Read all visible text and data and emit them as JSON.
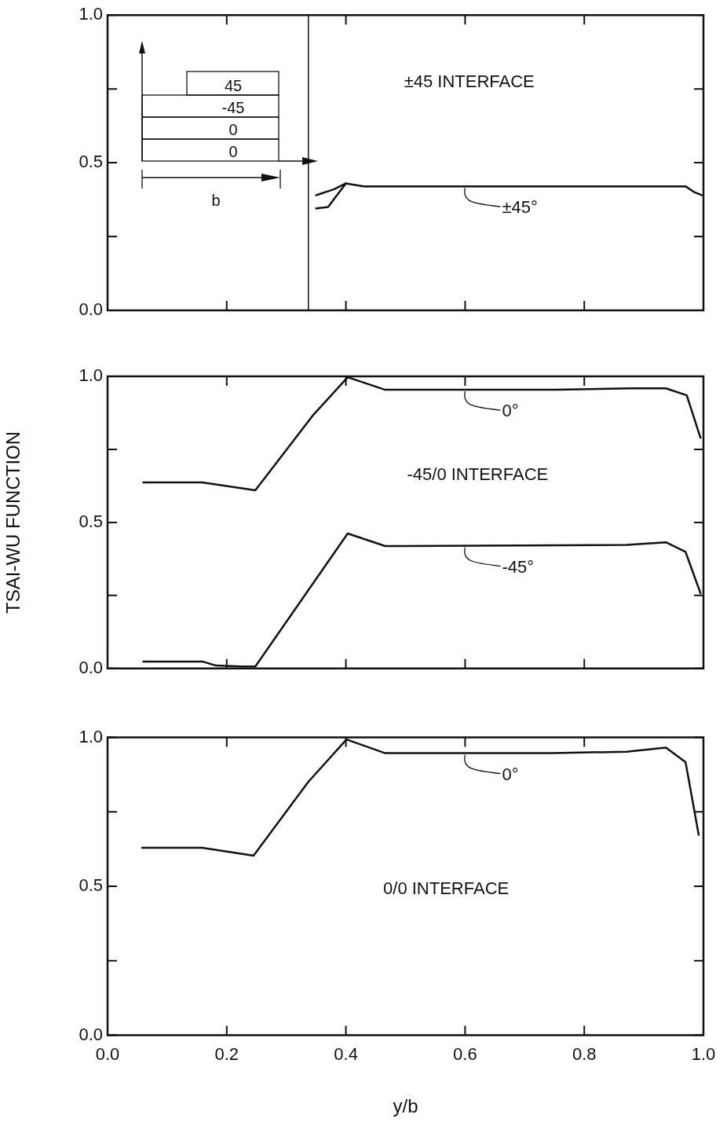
{
  "chart_data": [
    {
      "type": "line",
      "xlim": [
        0,
        1
      ],
      "ylim": [
        0,
        1
      ],
      "xticks": [
        {
          "value": 0,
          "label": null
        },
        {
          "value": 0.2,
          "label": null
        },
        {
          "value": 0.4,
          "label": null
        },
        {
          "value": 0.6,
          "label": null
        },
        {
          "value": 0.8,
          "label": null
        },
        {
          "value": 1,
          "label": null
        }
      ],
      "yticks": [
        {
          "value": 0,
          "label": "0.0"
        },
        {
          "value": 0.25,
          "label": null
        },
        {
          "value": 0.5,
          "label": "0.5"
        },
        {
          "value": 0.75,
          "label": null
        },
        {
          "value": 1,
          "label": "1.0"
        }
      ],
      "tick_labels": "y",
      "grid": false,
      "legend": "right",
      "marker": "none",
      "line_style": "solid",
      "series": [
        {
          "name": "±45°",
          "color": "#111111",
          "x": [
            0.35,
            0.38,
            0.4,
            0.43,
            0.6,
            0.8,
            0.93,
            0.97,
            0.985,
            0.997
          ],
          "values": [
            0.39,
            0.41,
            0.43,
            0.42,
            0.42,
            0.42,
            0.42,
            0.42,
            0.4,
            0.39
          ]
        },
        {
          "color": "#111111",
          "x": [
            0.35,
            0.37,
            0.4
          ],
          "values": [
            0.345,
            0.35,
            0.43
          ]
        }
      ],
      "ref_lines": [
        {
          "axis": "x",
          "value": 0.337,
          "color": "#111111"
        }
      ],
      "annotations": [
        "±45 INTERFACE",
        "45",
        "-45",
        "0",
        "0",
        "b"
      ]
    },
    {
      "type": "line",
      "xlim": [
        0,
        1
      ],
      "ylim": [
        0,
        1
      ],
      "ylabel": "TSAI-WU FUNCTION",
      "xticks": [
        {
          "value": 0,
          "label": null
        },
        {
          "value": 0.2,
          "label": null
        },
        {
          "value": 0.4,
          "label": null
        },
        {
          "value": 0.6,
          "label": null
        },
        {
          "value": 0.8,
          "label": null
        },
        {
          "value": 1,
          "label": null
        }
      ],
      "yticks": [
        {
          "value": 0,
          "label": "0.0"
        },
        {
          "value": 0.25,
          "label": null
        },
        {
          "value": 0.5,
          "label": "0.5"
        },
        {
          "value": 0.75,
          "label": null
        },
        {
          "value": 1,
          "label": "1.0"
        }
      ],
      "tick_labels": "y",
      "grid": false,
      "legend": "right",
      "marker": "none",
      "line_style": "solid",
      "series": [
        {
          "name": "0°",
          "color": "#111111",
          "x": [
            0.06,
            0.159,
            0.248,
            0.344,
            0.403,
            0.466,
            0.753,
            0.878,
            0.937,
            0.972,
            0.995
          ],
          "values": [
            0.637,
            0.637,
            0.61,
            0.865,
            0.997,
            0.954,
            0.954,
            0.959,
            0.959,
            0.935,
            0.79
          ]
        },
        {
          "name": "-45°",
          "color": "#111111",
          "x": [
            0.06,
            0.159,
            0.182,
            0.225,
            0.248,
            0.403,
            0.466,
            0.871,
            0.937,
            0.97,
            0.995
          ],
          "values": [
            0.024,
            0.024,
            0.01,
            0.007,
            0.007,
            0.462,
            0.419,
            0.423,
            0.432,
            0.399,
            0.258
          ]
        }
      ],
      "annotations": [
        "-45/0 INTERFACE"
      ]
    },
    {
      "type": "line",
      "xlim": [
        0,
        1
      ],
      "ylim": [
        0,
        1
      ],
      "xlabel": "y/b",
      "xticks": [
        {
          "value": 0,
          "label": "0.0"
        },
        {
          "value": 0.2,
          "label": "0.2"
        },
        {
          "value": 0.4,
          "label": "0.4"
        },
        {
          "value": 0.6,
          "label": "0.6"
        },
        {
          "value": 0.8,
          "label": "0.8"
        },
        {
          "value": 1,
          "label": "1.0"
        }
      ],
      "yticks": [
        {
          "value": 0,
          "label": "0.0"
        },
        {
          "value": 0.25,
          "label": null
        },
        {
          "value": 0.5,
          "label": "0.5"
        },
        {
          "value": 0.75,
          "label": null
        },
        {
          "value": 1,
          "label": "1.0"
        }
      ],
      "grid": false,
      "legend": "right",
      "marker": "none",
      "line_style": "solid",
      "series": [
        {
          "name": "0°",
          "color": "#111111",
          "x": [
            0.058,
            0.159,
            0.245,
            0.337,
            0.401,
            0.466,
            0.746,
            0.871,
            0.937,
            0.97,
            0.992
          ],
          "values": [
            0.629,
            0.629,
            0.603,
            0.851,
            0.993,
            0.947,
            0.947,
            0.952,
            0.966,
            0.917,
            0.673
          ]
        }
      ],
      "annotations": [
        "0/0 INTERFACE"
      ]
    }
  ]
}
